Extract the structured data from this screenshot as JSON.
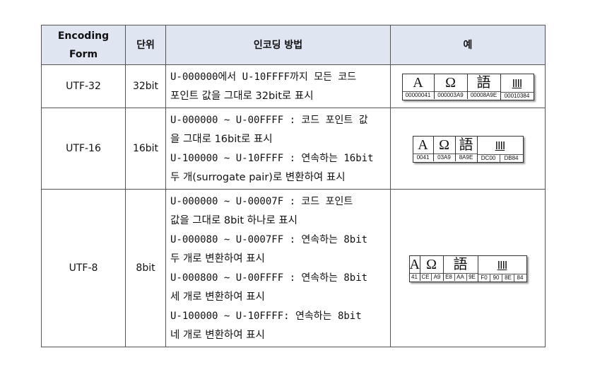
{
  "headers": {
    "form": "Encoding Form",
    "unit": "단위",
    "method": "인코딩 방법",
    "example": "예"
  },
  "rows": [
    {
      "form": "UTF-32",
      "unit": "32bit",
      "lines": [
        "U-000000에서 U-10FFFF까지 모든 코드",
        "포인트 값을 그대로 32bit로 표시"
      ],
      "example": {
        "glyphs": [
          "A",
          "Ω",
          "語",
          "𐎄"
        ],
        "codes": [
          [
            "00000041"
          ],
          [
            "000003A9"
          ],
          [
            "00008A9E"
          ],
          [
            "00010384"
          ]
        ]
      }
    },
    {
      "form": "UTF-16",
      "unit": "16bit",
      "lines": [
        "U-000000 ~ U-00FFFF : 코드 포인트 값",
        "을 그대로 16bit로 표시",
        "U-100000 ~ U-10FFFF : 연속하는 16bit",
        "두 개(surrogate pair)로 변환하여 표시"
      ],
      "example": {
        "glyphs": [
          "A",
          "Ω",
          "語",
          "𐎄"
        ],
        "codes": [
          [
            "0041"
          ],
          [
            "03A9"
          ],
          [
            "8A9E"
          ],
          [
            "DC00",
            "DB84"
          ]
        ]
      }
    },
    {
      "form": "UTF-8",
      "unit": "8bit",
      "lines": [
        "U-000000 ~ U-00007F : 코드 포인트",
        "값을 그대로 8bit 하나로 표시",
        "U-000080 ~ U-0007FF : 연속하는 8bit",
        "두 개로 변환하여 표시",
        "U-000800 ~ U-00FFFF : 연속하는 8bit",
        "세 개로 변환하여 표시",
        "U-100000 ~ U-10FFFF: 연속하는 8bit",
        "네 개로 변환하여 표시"
      ],
      "example": {
        "glyphs": [
          "A",
          "Ω",
          "語",
          "𐎄"
        ],
        "codes": [
          [
            "41"
          ],
          [
            "CE",
            "A9"
          ],
          [
            "E8",
            "AA",
            "9E"
          ],
          [
            "F0",
            "90",
            "8E",
            "84"
          ]
        ]
      }
    }
  ]
}
